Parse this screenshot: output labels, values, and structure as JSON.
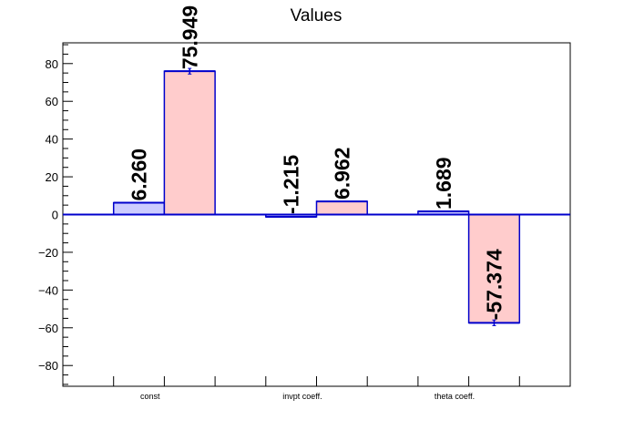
{
  "chart_data": {
    "type": "bar",
    "title": "Values",
    "categories": [
      "const",
      "invpt coeff.",
      "theta coeff."
    ],
    "series": [
      {
        "values": [
          6.26,
          -1.215,
          1.689
        ],
        "labels": [
          "6.260",
          "-1.215",
          "1.689"
        ],
        "fill": "#ccccff",
        "stroke": "#0000cc"
      },
      {
        "values": [
          75.949,
          6.962,
          -57.374
        ],
        "labels": [
          "75.949",
          "6.962",
          "-57.374"
        ],
        "fill": "#ffcccc",
        "stroke": "#0000cc",
        "errors": [
          1.5,
          0,
          1.5
        ]
      }
    ],
    "yticks": [
      "−80",
      "−60",
      "−40",
      "−20",
      "0",
      "20",
      "40",
      "60",
      "80"
    ],
    "ylim": [
      -91,
      91
    ],
    "xlabel": "",
    "ylabel": "",
    "grid": false
  }
}
